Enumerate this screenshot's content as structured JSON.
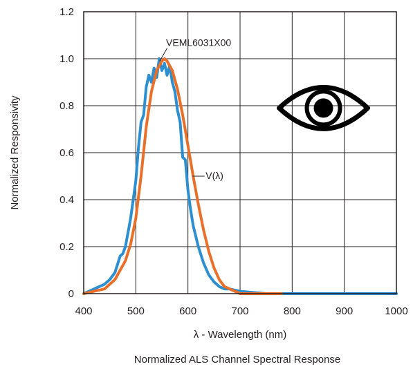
{
  "chart_data": {
    "type": "line",
    "caption": "Normalized ALS Channel Spectral Response",
    "xlabel": "λ - Wavelength (nm)",
    "ylabel": "Normalized Responsivity",
    "xlim": [
      400,
      1000
    ],
    "ylim": [
      0,
      1.2
    ],
    "xticks": [
      400,
      500,
      600,
      700,
      800,
      900,
      1000
    ],
    "yticks": [
      0,
      0.2,
      0.4,
      0.6,
      0.8,
      1.0,
      1.2
    ],
    "xtick_labels": [
      "400",
      "500",
      "600",
      "700",
      "800",
      "900",
      "1000"
    ],
    "ytick_labels": [
      "0",
      "0.2",
      "0.4",
      "0.6",
      "0.8",
      "1.0",
      "1.2"
    ],
    "grid": true,
    "series": [
      {
        "name": "VEML6031X00",
        "color": "#2d8fcf",
        "x": [
          400,
          420,
          440,
          450,
          460,
          470,
          475,
          480,
          490,
          500,
          505,
          510,
          515,
          520,
          525,
          530,
          535,
          540,
          545,
          550,
          555,
          560,
          565,
          570,
          575,
          580,
          585,
          590,
          595,
          600,
          605,
          610,
          620,
          630,
          640,
          650,
          660,
          670,
          680,
          700,
          750,
          800,
          900,
          1000
        ],
        "y": [
          0.0,
          0.02,
          0.04,
          0.06,
          0.09,
          0.16,
          0.17,
          0.2,
          0.32,
          0.48,
          0.62,
          0.73,
          0.76,
          0.88,
          0.93,
          0.9,
          0.96,
          0.92,
          1.0,
          0.95,
          0.98,
          0.93,
          0.97,
          0.9,
          0.86,
          0.78,
          0.73,
          0.58,
          0.57,
          0.44,
          0.36,
          0.29,
          0.2,
          0.13,
          0.08,
          0.05,
          0.03,
          0.02,
          0.02,
          0.01,
          0.0,
          0.0,
          0.0,
          0.0
        ]
      },
      {
        "name": "V(λ)",
        "color": "#e8702a",
        "x": [
          400,
          420,
          440,
          450,
          460,
          470,
          480,
          490,
          500,
          510,
          520,
          530,
          540,
          550,
          555,
          560,
          570,
          580,
          590,
          600,
          610,
          620,
          630,
          640,
          650,
          660,
          670,
          680,
          700,
          750,
          780
        ],
        "y": [
          0.0,
          0.01,
          0.02,
          0.04,
          0.06,
          0.1,
          0.14,
          0.21,
          0.32,
          0.5,
          0.71,
          0.86,
          0.95,
          0.99,
          1.0,
          0.99,
          0.95,
          0.87,
          0.76,
          0.63,
          0.5,
          0.38,
          0.27,
          0.18,
          0.11,
          0.06,
          0.03,
          0.02,
          0.0,
          0.0,
          0.0
        ]
      }
    ],
    "annotations": [
      {
        "text": "VEML6031X00",
        "target": "VEML6031X00"
      },
      {
        "text": "V(λ)",
        "target": "V(λ)"
      }
    ],
    "icon": "eye-icon"
  }
}
